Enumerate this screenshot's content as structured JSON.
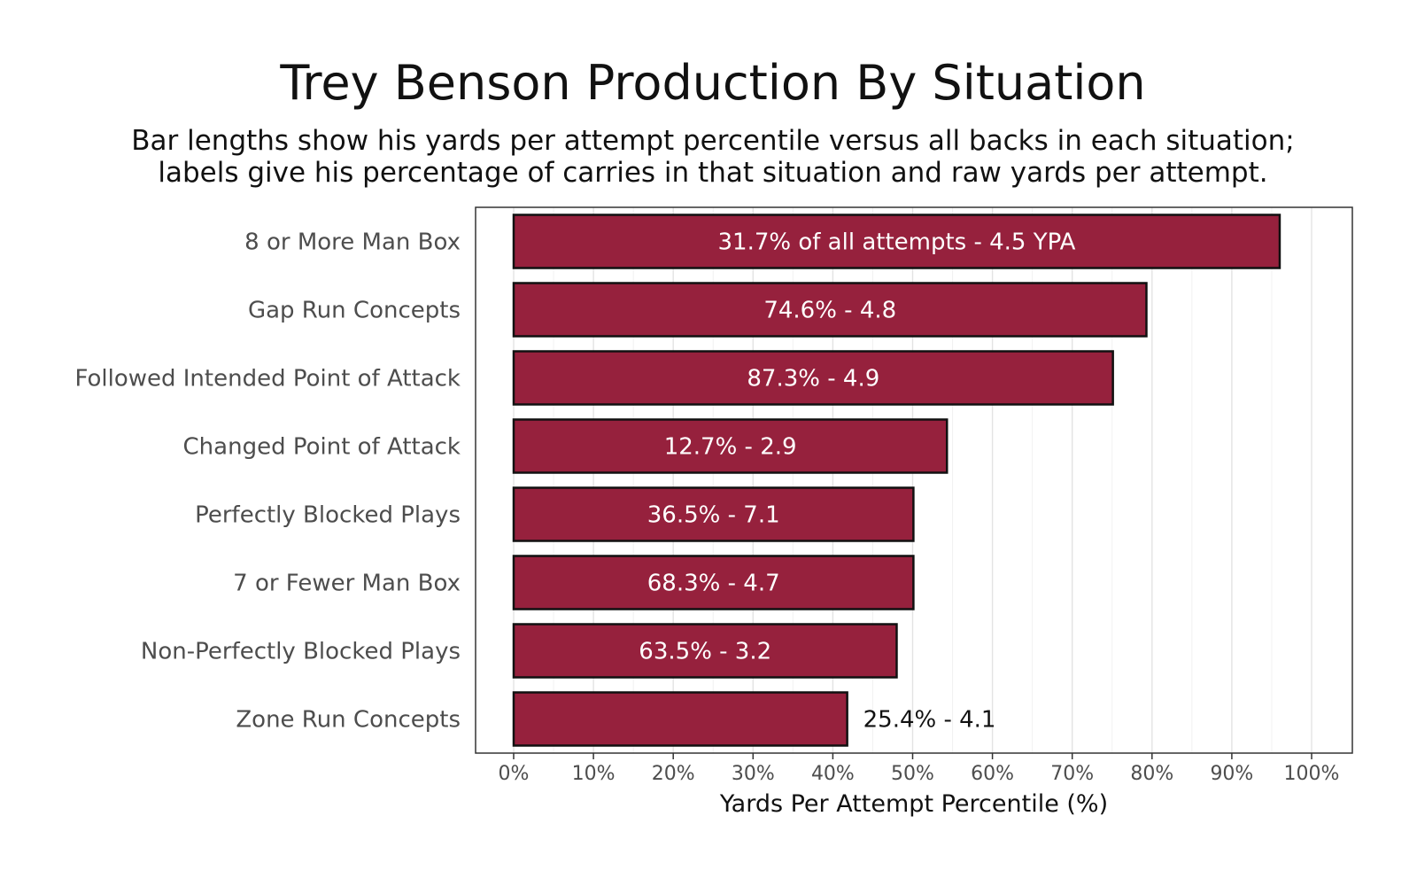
{
  "chart_data": {
    "type": "bar",
    "orientation": "horizontal",
    "title": "Trey Benson Production By Situation",
    "subtitle": [
      "Bar lengths show his yards per attempt percentile versus all backs in each situation;",
      "labels give his percentage of carries in that situation and raw yards per attempt."
    ],
    "xlabel": "Yards Per Attempt Percentile (%)",
    "ylabel": "",
    "xlim": [
      0,
      100
    ],
    "xticks": [
      0,
      10,
      20,
      30,
      40,
      50,
      60,
      70,
      80,
      90,
      100
    ],
    "xtick_labels": [
      "0%",
      "10%",
      "20%",
      "30%",
      "40%",
      "50%",
      "60%",
      "70%",
      "80%",
      "90%",
      "100%"
    ],
    "grid": true,
    "bar_color": "#96213d",
    "bar_edge_color": "#111111",
    "categories": [
      "8 or More Man Box",
      "Gap Run Concepts",
      "Followed Intended Point of Attack",
      "Changed Point of Attack",
      "Perfectly Blocked Plays",
      "7 or Fewer Man Box",
      "Non-Perfectly Blocked Plays",
      "Zone Run Concepts"
    ],
    "values": [
      96,
      79.3,
      75.1,
      54.3,
      50.1,
      50.1,
      48,
      41.8
    ],
    "labels": [
      "31.7% of all attempts - 4.5 YPA",
      "74.6% - 4.8",
      "87.3% - 4.9",
      "12.7% - 2.9",
      "36.5% - 7.1",
      "68.3% - 4.7",
      "63.5% - 3.2",
      "25.4% - 4.1"
    ]
  }
}
